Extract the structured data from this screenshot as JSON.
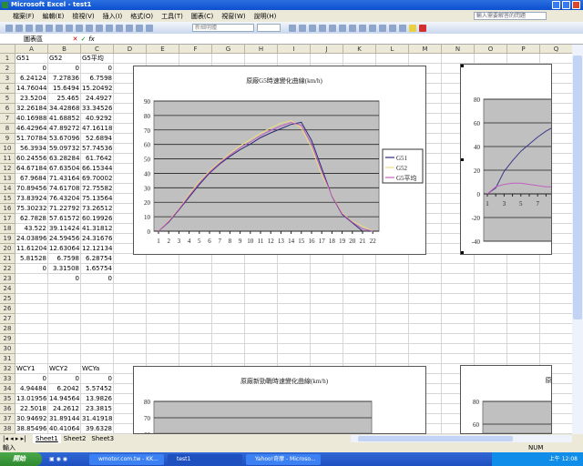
{
  "window": {
    "title": "Microsoft Excel - test1"
  },
  "menu": {
    "items": [
      "檔案(F)",
      "編輯(E)",
      "檢視(V)",
      "插入(I)",
      "格式(O)",
      "工具(T)",
      "圖表(C)",
      "視窗(W)",
      "說明(H)"
    ],
    "help_placeholder": "輸入需要解答的問題"
  },
  "toolbar": {
    "font": "新細明體"
  },
  "formula": {
    "namebox": "圖表區",
    "cancel": "✕",
    "enter": "✓",
    "fx": "fx"
  },
  "columns": [
    "A",
    "B",
    "C",
    "D",
    "E",
    "F",
    "G",
    "H",
    "I",
    "J",
    "K",
    "L",
    "M",
    "N",
    "O",
    "P",
    "Q"
  ],
  "sheet": {
    "rows": {
      "1": [
        "G51",
        "G52",
        "G5平均"
      ],
      "2": [
        "0",
        "0",
        "0"
      ],
      "3": [
        "6.24124",
        "7.27836",
        "6.7598"
      ],
      "4": [
        "14.76044",
        "15.6494",
        "15.20492"
      ],
      "5": [
        "23.5204",
        "25.465",
        "24.4927"
      ],
      "6": [
        "32.26184",
        "34.42868",
        "33.34526"
      ],
      "7": [
        "40.16988",
        "41.68852",
        "40.9292"
      ],
      "8": [
        "46.42964",
        "47.89272",
        "47.16118"
      ],
      "9": [
        "51.70784",
        "53.67096",
        "52.6894"
      ],
      "10": [
        "56.3934",
        "59.09732",
        "57.74536"
      ],
      "11": [
        "60.24556",
        "63.28284",
        "61.7642"
      ],
      "12": [
        "64.67184",
        "67.63504",
        "66.15344"
      ],
      "13": [
        "67.9684",
        "71.43164",
        "69.70002"
      ],
      "14": [
        "70.89456",
        "74.61708",
        "72.75582"
      ],
      "15": [
        "73.83924",
        "76.43204",
        "75.13564"
      ],
      "16": [
        "75.30232",
        "71.22792",
        "73.26512"
      ],
      "17": [
        "62.7828",
        "57.61572",
        "60.19926"
      ],
      "18": [
        "43.522",
        "39.11424",
        "41.31812"
      ],
      "19": [
        "24.03896",
        "24.59456",
        "24.31676"
      ],
      "20": [
        "11.61204",
        "12.63064",
        "12.12134"
      ],
      "21": [
        "5.81528",
        "6.7598",
        "6.28754"
      ],
      "22": [
        "0",
        "3.31508",
        "1.65754"
      ],
      "23": [
        "",
        "0",
        "0"
      ],
      "32": [
        "WCY1",
        "WCY2",
        "WCYa"
      ],
      "33": [
        "0",
        "0",
        "0"
      ],
      "34": [
        "4.94484",
        "6.2042",
        "5.57452"
      ],
      "35": [
        "13.01956",
        "14.94564",
        "13.9826"
      ],
      "36": [
        "22.5018",
        "24.2612",
        "23.3815"
      ],
      "37": [
        "30.94692",
        "31.89144",
        "31.41918"
      ],
      "38": [
        "38.85496",
        "40.41064",
        "39.6328"
      ]
    }
  },
  "chart_data": [
    {
      "type": "line",
      "title": "原廠G5時速變化曲線(km/h)",
      "categories": [
        "1",
        "2",
        "3",
        "4",
        "5",
        "6",
        "7",
        "8",
        "9",
        "10",
        "11",
        "12",
        "13",
        "14",
        "15",
        "16",
        "17",
        "18",
        "19",
        "20",
        "21",
        "22"
      ],
      "ylim": [
        0,
        90
      ],
      "yticks": [
        "0",
        "10",
        "20",
        "30",
        "40",
        "50",
        "60",
        "70",
        "80",
        "90"
      ],
      "grid": true,
      "legend": "right",
      "series": [
        {
          "name": "G51",
          "color": "#2a2a7a",
          "values": [
            0,
            6.24124,
            14.76044,
            23.5204,
            32.26184,
            40.16988,
            46.42964,
            51.70784,
            56.3934,
            60.24556,
            64.67184,
            67.9684,
            70.89456,
            73.83924,
            75.30232,
            62.7828,
            43.522,
            24.03896,
            11.61204,
            5.81528,
            0,
            null
          ]
        },
        {
          "name": "G52",
          "color": "#e8e07a",
          "values": [
            0,
            7.27836,
            15.6494,
            25.465,
            34.42868,
            41.68852,
            47.89272,
            53.67096,
            59.09732,
            63.28284,
            67.63504,
            71.43164,
            74.61708,
            76.43204,
            71.22792,
            57.61572,
            39.11424,
            24.59456,
            12.63064,
            6.7598,
            3.31508,
            0
          ]
        },
        {
          "name": "G5平均",
          "color": "#c060c0",
          "values": [
            0,
            6.7598,
            15.20492,
            24.4927,
            33.34526,
            40.9292,
            47.16118,
            52.6894,
            57.74536,
            61.7642,
            66.15344,
            69.70002,
            72.75582,
            75.13564,
            73.26512,
            60.19926,
            41.31812,
            24.31676,
            12.12134,
            6.28754,
            1.65754,
            0
          ]
        }
      ]
    },
    {
      "type": "line",
      "categories": [
        "1",
        "2",
        "3",
        "4",
        "5",
        "6",
        "7",
        "8",
        "9",
        "10"
      ],
      "ylim": [
        -40,
        80
      ],
      "yticks": [
        "-40",
        "-20",
        "0",
        "20",
        "40",
        "60",
        "80"
      ],
      "xticks": [
        "1",
        "3",
        "5",
        "7",
        "9"
      ],
      "grid": true,
      "series": [
        {
          "color": "#3a3a8a",
          "values": [
            0,
            5,
            19,
            28,
            36,
            42,
            48,
            53,
            57,
            60
          ]
        },
        {
          "color": "#c060c0",
          "values": [
            0,
            6,
            8,
            9,
            9,
            8,
            7,
            6,
            6,
            5
          ]
        }
      ]
    },
    {
      "type": "line",
      "title": "原廠新勁戰時速變化曲線(km/h)",
      "yticks": [
        "60",
        "70",
        "80"
      ],
      "grid": true
    },
    {
      "type": "line",
      "title": "原",
      "yticks": [
        "60",
        "80"
      ],
      "grid": true
    }
  ],
  "tabs": [
    "Sheet1",
    "Sheet2",
    "Sheet3"
  ],
  "status": {
    "mode": "輸入",
    "num": "NUM"
  },
  "taskbar": {
    "start": "開始",
    "items": [
      "wmotor.com.tw - KK...",
      "test1",
      "Yahoo!奇摩 - Microso..."
    ],
    "clock": "上午 12:08"
  }
}
